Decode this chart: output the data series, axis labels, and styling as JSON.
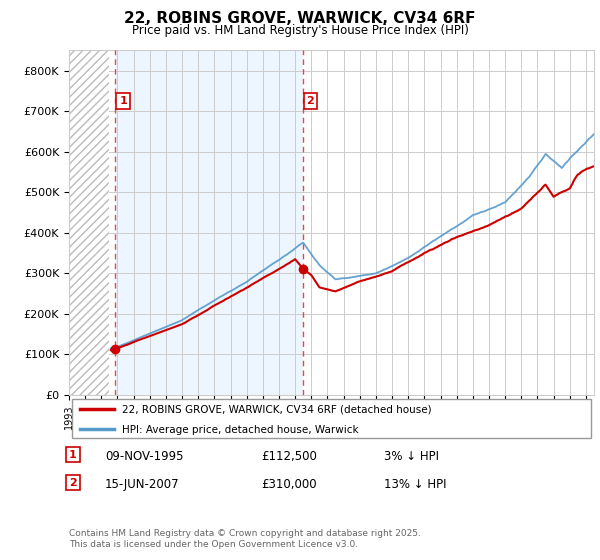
{
  "title": "22, ROBINS GROVE, WARWICK, CV34 6RF",
  "subtitle": "Price paid vs. HM Land Registry's House Price Index (HPI)",
  "ylim": [
    0,
    850000
  ],
  "yticks": [
    0,
    100000,
    200000,
    300000,
    400000,
    500000,
    600000,
    700000,
    800000
  ],
  "ytick_labels": [
    "£0",
    "£100K",
    "£200K",
    "£300K",
    "£400K",
    "£500K",
    "£600K",
    "£700K",
    "£800K"
  ],
  "grid_color": "#cccccc",
  "sale1_x": 1995.86,
  "sale1_y": 112500,
  "sale2_x": 2007.46,
  "sale2_y": 310000,
  "legend_line1": "22, ROBINS GROVE, WARWICK, CV34 6RF (detached house)",
  "legend_line2": "HPI: Average price, detached house, Warwick",
  "footer": "Contains HM Land Registry data © Crown copyright and database right 2025.\nThis data is licensed under the Open Government Licence v3.0.",
  "line_red": "#cc0000",
  "line_blue": "#5599cc",
  "xmin": 1993.0,
  "xmax": 2025.5,
  "hatch_end": 1995.5,
  "shade_color": "#ddeeff",
  "sale1_date": "09-NOV-1995",
  "sale1_price": "£112,500",
  "sale1_hpi_diff": "3% ↓ HPI",
  "sale2_date": "15-JUN-2007",
  "sale2_price": "£310,000",
  "sale2_hpi_diff": "13% ↓ HPI"
}
